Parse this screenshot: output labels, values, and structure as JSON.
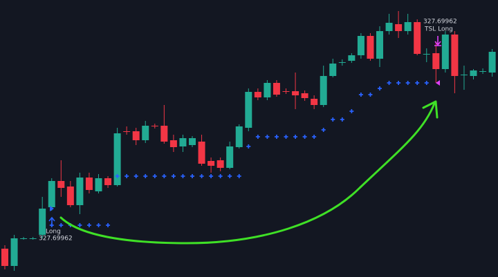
{
  "chart_data": {
    "type": "candlestick",
    "ylim": [
      0,
      401
    ],
    "up_color": "#22ab94",
    "down_color": "#f23645",
    "stop_color": "#2962ff",
    "open": [
      41,
      16,
      56,
      56,
      61,
      101,
      139,
      131,
      104,
      144,
      124,
      143,
      133,
      211,
      211,
      198,
      219,
      219,
      198,
      189,
      191,
      196,
      168,
      169,
      158,
      188,
      216,
      268,
      260,
      281,
      269,
      269,
      266,
      258,
      249,
      291,
      310,
      313,
      321,
      349,
      316,
      356,
      366,
      356,
      369,
      323,
      324,
      301,
      351,
      293,
      291,
      298,
      296
    ],
    "high": [
      46,
      61,
      58,
      58,
      116,
      143,
      169,
      139,
      151,
      151,
      149,
      146,
      216,
      218,
      216,
      226,
      222,
      249,
      206,
      206,
      204,
      206,
      173,
      173,
      196,
      221,
      273,
      273,
      285,
      285,
      273,
      296,
      270,
      263,
      306,
      316,
      315,
      324,
      353,
      353,
      363,
      381,
      385,
      381,
      373,
      331,
      341,
      356,
      356,
      306,
      301,
      302,
      330
    ],
    "low": [
      11,
      9,
      54,
      54,
      56,
      96,
      116,
      101,
      91,
      121,
      121,
      129,
      131,
      206,
      191,
      194,
      215,
      193,
      181,
      181,
      188,
      161,
      151,
      153,
      156,
      186,
      211,
      256,
      256,
      261,
      265,
      243,
      255,
      243,
      246,
      289,
      306,
      310,
      316,
      313,
      304,
      351,
      346,
      351,
      321,
      311,
      281,
      296,
      266,
      271,
      286,
      294,
      290
    ],
    "close": [
      16,
      56,
      56,
      56,
      99,
      139,
      129,
      104,
      144,
      126,
      143,
      133,
      208,
      210,
      198,
      219,
      218,
      196,
      188,
      201,
      201,
      164,
      161,
      158,
      189,
      218,
      268,
      260,
      281,
      264,
      268,
      263,
      259,
      249,
      291,
      309,
      311,
      321,
      349,
      316,
      356,
      368,
      356,
      369,
      323,
      323,
      301,
      351,
      291,
      293,
      299,
      298,
      326
    ],
    "stop": [
      null,
      null,
      null,
      null,
      null,
      75,
      75,
      75,
      75,
      75,
      75,
      75,
      146,
      146,
      146,
      146,
      146,
      146,
      146,
      146,
      146,
      146,
      146,
      146,
      146,
      146,
      189,
      203,
      203,
      203,
      203,
      203,
      203,
      203,
      213,
      228,
      228,
      240,
      264,
      264,
      273,
      281,
      281,
      281,
      281,
      281,
      null,
      null,
      null,
      null,
      null,
      null,
      null
    ],
    "entry": {
      "label": "Long",
      "price": "327.69962"
    },
    "exit": {
      "price": "327.69962",
      "label": "TSL Long"
    }
  }
}
